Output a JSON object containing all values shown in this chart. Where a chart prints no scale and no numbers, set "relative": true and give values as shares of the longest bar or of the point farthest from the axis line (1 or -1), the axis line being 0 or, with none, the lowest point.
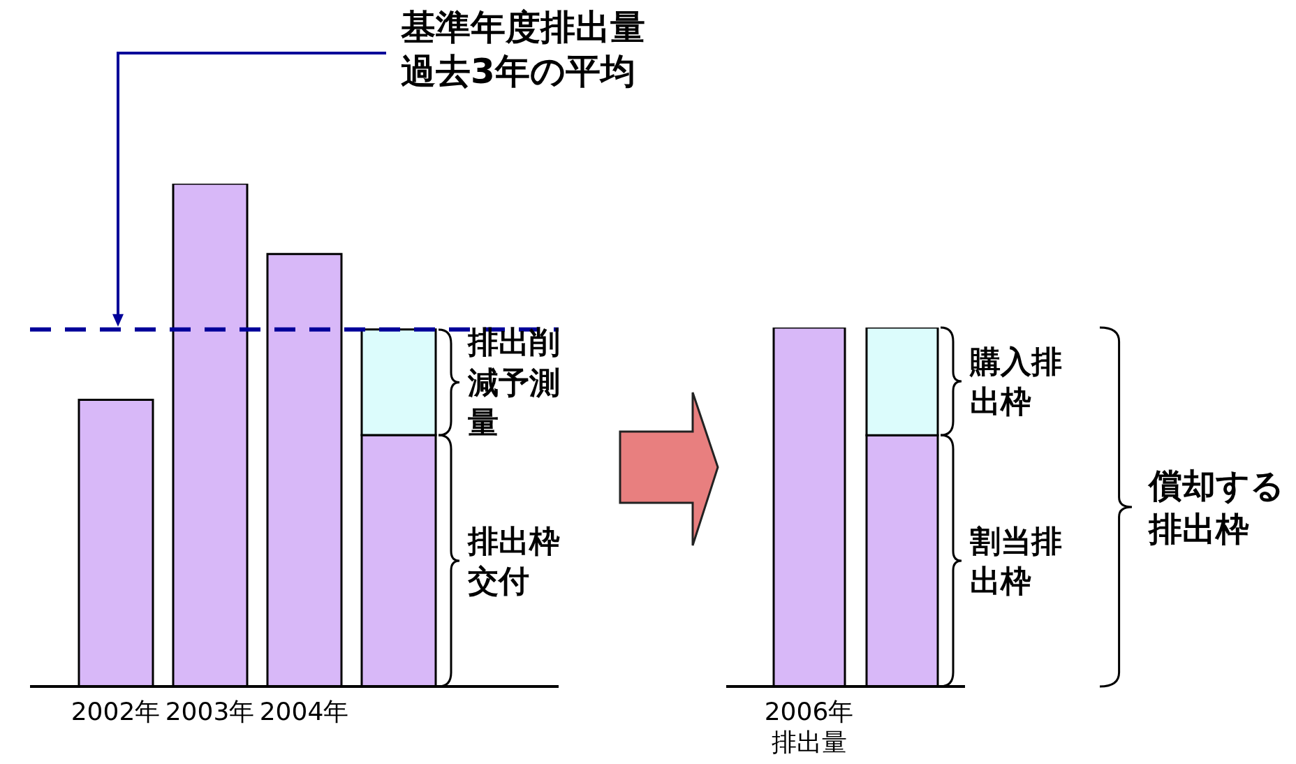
{
  "chart_data": [
    {
      "type": "bar",
      "relative": true,
      "stacked": true,
      "categories": [
        "2002年",
        "2003年",
        "2004年",
        null
      ],
      "series": [
        {
          "color": "#d8b8f8",
          "values": [
            0.57,
            1,
            0.86,
            null
          ]
        },
        {
          "name": "排出枠交付",
          "color": "#d8b8f8",
          "values": [
            null,
            null,
            null,
            0.5
          ]
        },
        {
          "name": "排出削減予測量",
          "color": "#dcfcfc",
          "values": [
            null,
            null,
            null,
            0.21
          ]
        }
      ],
      "ref_lines": [
        {
          "axis": "y",
          "value": 0.71,
          "color": "#000099",
          "line_style": "dashed"
        }
      ],
      "annotations": [
        "基準年度排出量過去3年の平均"
      ]
    },
    {
      "type": "bar",
      "relative": true,
      "stacked": true,
      "categories": [
        "2006年排出量",
        null
      ],
      "series": [
        {
          "color": "#d8b8f8",
          "values": [
            1,
            null
          ]
        },
        {
          "name": "割当排出枠",
          "color": "#d8b8f8",
          "values": [
            null,
            0.7
          ]
        },
        {
          "name": "購入排出枠",
          "color": "#dcfcfc",
          "values": [
            null,
            0.3
          ]
        }
      ],
      "annotations": [
        "償却する排出枠"
      ]
    }
  ]
}
